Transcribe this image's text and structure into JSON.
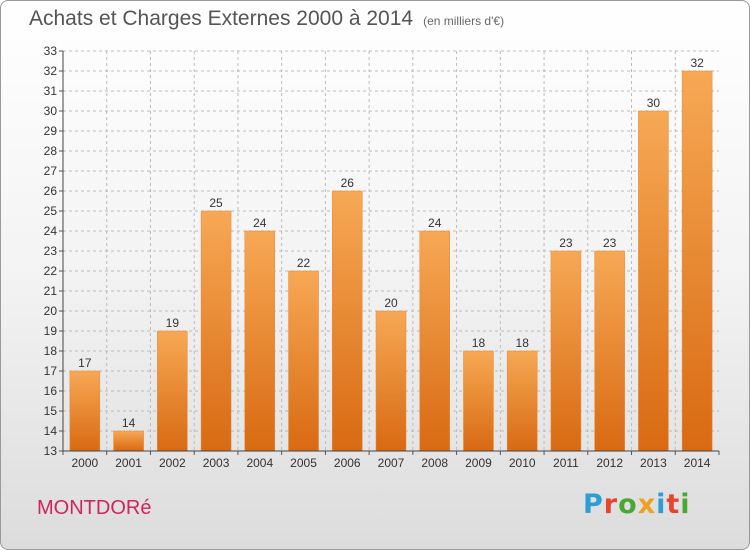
{
  "header": {
    "title": "Achats et Charges Externes 2000 à 2014",
    "unit": "(en milliers d'€)"
  },
  "footer": {
    "commune": "MONTDORé",
    "logo": "Proxiti",
    "logo_colors": [
      "#2a9fd6",
      "#e8442b",
      "#4aa832",
      "#f0a020",
      "#2a9fd6",
      "#e8442b",
      "#4aa832"
    ]
  },
  "chart_data": {
    "type": "bar",
    "categories": [
      "2000",
      "2001",
      "2002",
      "2003",
      "2004",
      "2005",
      "2006",
      "2007",
      "2008",
      "2009",
      "2010",
      "2011",
      "2012",
      "2013",
      "2014"
    ],
    "values": [
      17,
      14,
      19,
      25,
      24,
      22,
      26,
      20,
      24,
      18,
      18,
      23,
      23,
      30,
      32
    ],
    "data_labels": [
      "17",
      "14",
      "19",
      "25",
      "24",
      "22",
      "26",
      "20",
      "24",
      "18",
      "18",
      "23",
      "23",
      "30",
      "32"
    ],
    "y_ticks": [
      "13",
      "14",
      "15",
      "16",
      "17",
      "18",
      "19",
      "20",
      "21",
      "22",
      "23",
      "24",
      "25",
      "26",
      "27",
      "28",
      "29",
      "30",
      "31",
      "32",
      "33"
    ],
    "ylim": [
      13,
      33
    ],
    "grid": true,
    "bar_color_top": "#f7a855",
    "bar_color_bottom": "#d86a12",
    "text_color": "#333333",
    "grid_color": "#bbbbbb"
  }
}
